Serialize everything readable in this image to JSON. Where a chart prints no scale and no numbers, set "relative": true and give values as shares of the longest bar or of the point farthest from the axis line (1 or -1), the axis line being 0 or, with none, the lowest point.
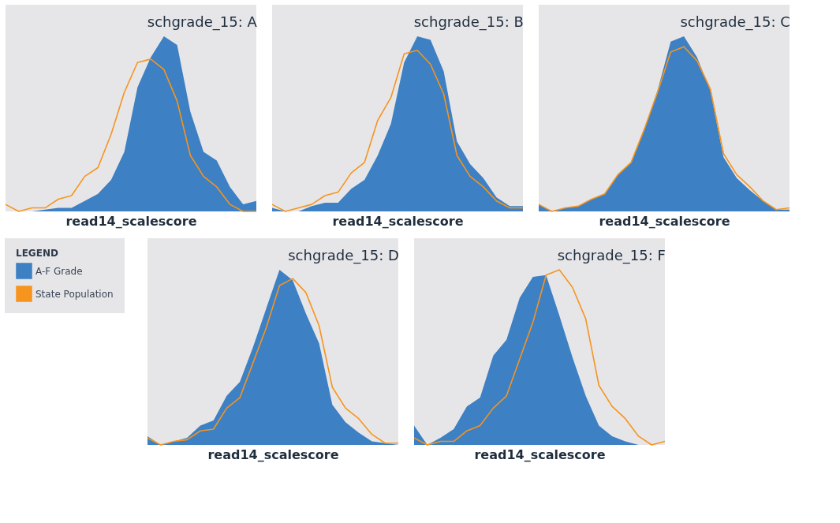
{
  "chart_data": [
    {
      "type": "area",
      "title": "schgrade_15: A",
      "xlabel": "read14_scalescore",
      "relative": true,
      "categories": [
        null,
        null,
        null,
        null,
        null,
        null,
        null,
        null,
        null,
        null,
        null,
        null,
        null,
        null,
        null,
        null,
        null,
        null,
        null,
        null
      ],
      "series": [
        {
          "color": "#3d80c3",
          "values": [
            0,
            0,
            0,
            0.01,
            0.02,
            0.02,
            0.06,
            0.1,
            0.18,
            0.34,
            0.71,
            0.88,
            1,
            0.95,
            0.57,
            0.34,
            0.29,
            0.14,
            0.04,
            0.06
          ]
        },
        {
          "type": "line",
          "color": "#f7941d",
          "values": [
            0.04,
            0,
            0.02,
            0.02,
            0.07,
            0.09,
            0.2,
            0.25,
            0.44,
            0.68,
            0.85,
            0.87,
            0.81,
            0.63,
            0.32,
            0.2,
            0.14,
            0.04,
            0,
            0
          ]
        }
      ]
    },
    {
      "type": "area",
      "title": "schgrade_15: B",
      "xlabel": "read14_scalescore",
      "relative": true,
      "categories": [
        null,
        null,
        null,
        null,
        null,
        null,
        null,
        null,
        null,
        null,
        null,
        null,
        null,
        null,
        null,
        null,
        null,
        null,
        null,
        null
      ],
      "series": [
        {
          "color": "#3d80c3",
          "values": [
            0.02,
            0,
            0,
            0.03,
            0.05,
            0.05,
            0.13,
            0.18,
            0.32,
            0.5,
            0.85,
            1,
            0.98,
            0.8,
            0.4,
            0.27,
            0.19,
            0.08,
            0.03,
            0.03
          ]
        },
        {
          "type": "line",
          "color": "#f7941d",
          "values": [
            0.04,
            0,
            0.02,
            0.04,
            0.09,
            0.11,
            0.22,
            0.28,
            0.52,
            0.65,
            0.9,
            0.92,
            0.84,
            0.67,
            0.32,
            0.2,
            0.14,
            0.06,
            0.02,
            0.02
          ]
        }
      ]
    },
    {
      "type": "area",
      "title": "schgrade_15: C",
      "xlabel": "read14_scalescore",
      "relative": true,
      "categories": [
        null,
        null,
        null,
        null,
        null,
        null,
        null,
        null,
        null,
        null,
        null,
        null,
        null,
        null,
        null,
        null,
        null,
        null,
        null,
        null
      ],
      "series": [
        {
          "color": "#3d80c3",
          "values": [
            0.04,
            0,
            0.02,
            0.03,
            0.07,
            0.1,
            0.21,
            0.28,
            0.47,
            0.69,
            0.97,
            1,
            0.88,
            0.69,
            0.31,
            0.19,
            0.12,
            0.06,
            0.01,
            0.01
          ]
        },
        {
          "type": "line",
          "color": "#f7941d",
          "values": [
            0.04,
            0,
            0.02,
            0.03,
            0.07,
            0.1,
            0.21,
            0.28,
            0.47,
            0.68,
            0.91,
            0.94,
            0.86,
            0.7,
            0.33,
            0.21,
            0.14,
            0.06,
            0.01,
            0.02
          ]
        }
      ]
    },
    {
      "type": "area",
      "title": "schgrade_15: D",
      "xlabel": "read14_scalescore",
      "relative": true,
      "legend": "left",
      "legend_title": "LEGEND",
      "categories": [
        null,
        null,
        null,
        null,
        null,
        null,
        null,
        null,
        null,
        null,
        null,
        null,
        null,
        null,
        null,
        null,
        null,
        null,
        null,
        null
      ],
      "series": [
        {
          "name": "A-F Grade",
          "color": "#3d80c3",
          "values": [
            0.05,
            0,
            0.02,
            0.04,
            0.11,
            0.14,
            0.28,
            0.36,
            0.56,
            0.78,
            1,
            0.94,
            0.75,
            0.58,
            0.23,
            0.13,
            0.07,
            0.02,
            0.01,
            0
          ]
        },
        {
          "name": "State Population",
          "type": "line",
          "color": "#f7941d",
          "values": [
            0.04,
            0,
            0.02,
            0.03,
            0.08,
            0.09,
            0.21,
            0.27,
            0.47,
            0.67,
            0.91,
            0.95,
            0.87,
            0.68,
            0.33,
            0.21,
            0.15,
            0.06,
            0.01,
            0.01
          ]
        }
      ]
    },
    {
      "type": "area",
      "title": "schgrade_15: F",
      "xlabel": "read14_scalescore",
      "relative": true,
      "categories": [
        null,
        null,
        null,
        null,
        null,
        null,
        null,
        null,
        null,
        null,
        null,
        null,
        null,
        null,
        null,
        null,
        null,
        null,
        null,
        null
      ],
      "series": [
        {
          "color": "#3d80c3",
          "values": [
            0.11,
            0,
            0.04,
            0.09,
            0.22,
            0.27,
            0.51,
            0.6,
            0.84,
            0.96,
            0.97,
            0.74,
            0.5,
            0.28,
            0.11,
            0.05,
            0.02,
            0,
            0,
            0
          ]
        },
        {
          "type": "line",
          "color": "#f7941d",
          "values": [
            0.04,
            0,
            0.02,
            0.02,
            0.08,
            0.11,
            0.21,
            0.28,
            0.49,
            0.7,
            0.97,
            1,
            0.9,
            0.72,
            0.34,
            0.22,
            0.15,
            0.05,
            0,
            0.02
          ]
        }
      ]
    }
  ]
}
